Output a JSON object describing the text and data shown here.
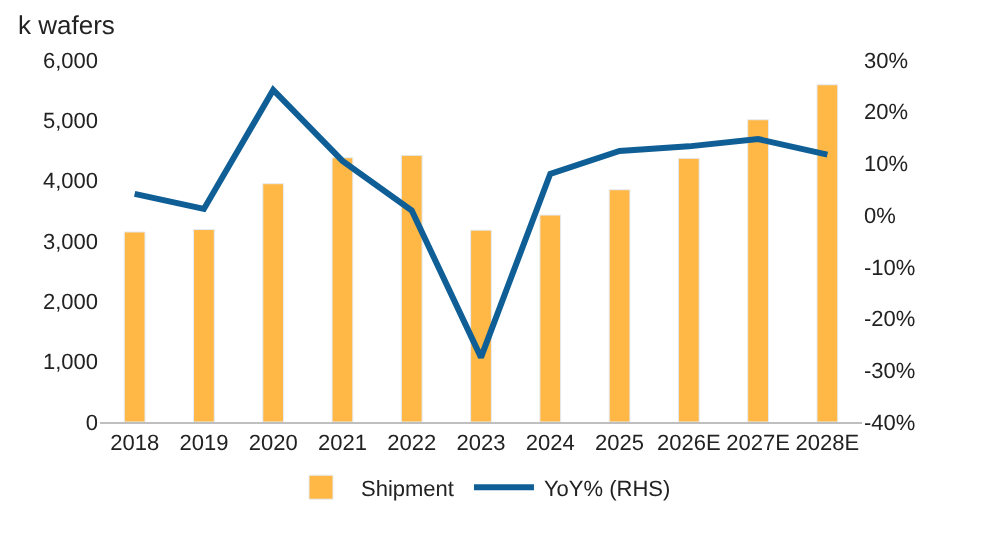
{
  "chart_data": {
    "type": "bar",
    "ylabel": "k wafers",
    "categories": [
      "2018",
      "2019",
      "2020",
      "2021",
      "2022",
      "2023",
      "2024",
      "2025",
      "2026E",
      "2027E",
      "2028E"
    ],
    "series": [
      {
        "name": "Shipment",
        "color": "#ffb845",
        "values": [
          3150,
          3190,
          3950,
          4380,
          4420,
          3180,
          3430,
          3850,
          4370,
          5010,
          5590
        ]
      },
      {
        "name": "YoY% (RHS)",
        "type": "line",
        "axis": "y2",
        "color": "#0f5f96",
        "values": [
          4.1,
          1.2,
          24.2,
          10.5,
          0.9,
          -27.5,
          8.0,
          12.4,
          13.3,
          14.7,
          11.7
        ]
      }
    ],
    "ylim": [
      0,
      6000
    ],
    "yticks": [
      {
        "value": 0,
        "label": "0"
      },
      {
        "value": 1000,
        "label": "1,000"
      },
      {
        "value": 2000,
        "label": "2,000"
      },
      {
        "value": 3000,
        "label": "3,000"
      },
      {
        "value": 4000,
        "label": "4,000"
      },
      {
        "value": 5000,
        "label": "5,000"
      },
      {
        "value": 6000,
        "label": "6,000"
      }
    ],
    "y2lim": [
      -40,
      30
    ],
    "y2ticks": [
      {
        "value": -40,
        "label": "-40%"
      },
      {
        "value": -30,
        "label": "-30%"
      },
      {
        "value": -20,
        "label": "-20%"
      },
      {
        "value": -10,
        "label": "-10%"
      },
      {
        "value": 0,
        "label": "0%"
      },
      {
        "value": 10,
        "label": "10%"
      },
      {
        "value": 20,
        "label": "20%"
      },
      {
        "value": 30,
        "label": "30%"
      }
    ],
    "legend": "bottom",
    "marker": "none",
    "line_style": "solid"
  }
}
